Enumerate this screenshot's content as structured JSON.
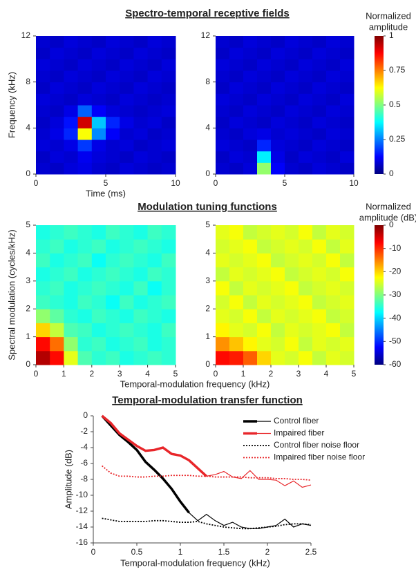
{
  "chart_data": [
    {
      "type": "heatmap",
      "title": "Spectro-temporal receptive fields",
      "xlabel": "Time (ms)",
      "ylabel": "Frequency (kHz)",
      "xlim": [
        0,
        10
      ],
      "ylim": [
        0,
        12
      ],
      "xticks": [
        0,
        5,
        10
      ],
      "yticks": [
        0,
        4,
        8,
        12
      ],
      "colormap": "jet",
      "clim": [
        0,
        1
      ],
      "cticks": [
        0,
        0.25,
        0.5,
        0.75,
        1
      ],
      "colorbar_label": [
        "Normalized",
        "amplitude"
      ],
      "panels": [
        {
          "z": [
            [
              0.08,
              0.07,
              0.09,
              0.1,
              0.08,
              0.07,
              0.09,
              0.08,
              0.07,
              0.08
            ],
            [
              0.07,
              0.09,
              0.08,
              0.11,
              0.09,
              0.08,
              0.07,
              0.09,
              0.08,
              0.07
            ],
            [
              0.09,
              0.08,
              0.1,
              0.18,
              0.1,
              0.08,
              0.09,
              0.07,
              0.08,
              0.09
            ],
            [
              0.08,
              0.1,
              0.16,
              0.62,
              0.26,
              0.12,
              0.08,
              0.09,
              0.07,
              0.08
            ],
            [
              0.07,
              0.09,
              0.14,
              0.92,
              0.32,
              0.16,
              0.1,
              0.08,
              0.09,
              0.07
            ],
            [
              0.08,
              0.07,
              0.1,
              0.22,
              0.12,
              0.09,
              0.08,
              0.07,
              0.08,
              0.09
            ],
            [
              0.09,
              0.08,
              0.07,
              0.09,
              0.08,
              0.07,
              0.09,
              0.08,
              0.07,
              0.08
            ],
            [
              0.07,
              0.09,
              0.08,
              0.07,
              0.09,
              0.08,
              0.07,
              0.09,
              0.08,
              0.07
            ],
            [
              0.08,
              0.07,
              0.09,
              0.08,
              0.07,
              0.09,
              0.08,
              0.07,
              0.09,
              0.08
            ],
            [
              0.09,
              0.08,
              0.07,
              0.09,
              0.08,
              0.07,
              0.09,
              0.08,
              0.07,
              0.09
            ],
            [
              0.07,
              0.09,
              0.08,
              0.07,
              0.09,
              0.08,
              0.07,
              0.09,
              0.08,
              0.07
            ],
            [
              0.08,
              0.07,
              0.09,
              0.08,
              0.07,
              0.09,
              0.08,
              0.07,
              0.09,
              0.08
            ]
          ]
        },
        {
          "z": [
            [
              0.08,
              0.07,
              0.09,
              0.52,
              0.12,
              0.08,
              0.07,
              0.09,
              0.08,
              0.07
            ],
            [
              0.07,
              0.09,
              0.08,
              0.36,
              0.1,
              0.07,
              0.09,
              0.08,
              0.07,
              0.09
            ],
            [
              0.09,
              0.08,
              0.07,
              0.16,
              0.09,
              0.08,
              0.07,
              0.09,
              0.08,
              0.07
            ],
            [
              0.08,
              0.07,
              0.09,
              0.1,
              0.08,
              0.09,
              0.08,
              0.07,
              0.09,
              0.08
            ],
            [
              0.07,
              0.09,
              0.08,
              0.07,
              0.09,
              0.08,
              0.07,
              0.09,
              0.08,
              0.07
            ],
            [
              0.08,
              0.07,
              0.09,
              0.08,
              0.07,
              0.09,
              0.08,
              0.07,
              0.09,
              0.08
            ],
            [
              0.09,
              0.08,
              0.07,
              0.09,
              0.08,
              0.07,
              0.09,
              0.08,
              0.07,
              0.09
            ],
            [
              0.07,
              0.09,
              0.08,
              0.07,
              0.09,
              0.08,
              0.07,
              0.09,
              0.08,
              0.07
            ],
            [
              0.08,
              0.07,
              0.09,
              0.08,
              0.07,
              0.09,
              0.08,
              0.07,
              0.09,
              0.08
            ],
            [
              0.09,
              0.08,
              0.07,
              0.09,
              0.08,
              0.07,
              0.09,
              0.08,
              0.07,
              0.09
            ],
            [
              0.07,
              0.09,
              0.08,
              0.07,
              0.09,
              0.08,
              0.07,
              0.09,
              0.08,
              0.07
            ],
            [
              0.08,
              0.07,
              0.09,
              0.08,
              0.07,
              0.09,
              0.08,
              0.07,
              0.09,
              0.08
            ]
          ]
        }
      ]
    },
    {
      "type": "heatmap",
      "title": "Modulation tuning functions",
      "xlabel": "Temporal-modulation frequency (kHz)",
      "ylabel": "Spectral modulation (cycles/kHz)",
      "xlim": [
        0,
        5
      ],
      "ylim": [
        0,
        5
      ],
      "xticks": [
        0,
        1,
        2,
        3,
        4,
        5
      ],
      "yticks": [
        0,
        1,
        2,
        3,
        4,
        5
      ],
      "colormap": "jet",
      "clim": [
        -60,
        0
      ],
      "cticks": [
        0,
        -10,
        -20,
        -30,
        -40,
        -50,
        -60
      ],
      "colorbar_label": [
        "Normalized",
        "amplitude (dB)"
      ],
      "panels": [
        {
          "z": [
            [
              -3,
              -8,
              -24,
              -33,
              -35,
              -34,
              -36,
              -35,
              -34,
              -35
            ],
            [
              -8,
              -14,
              -29,
              -35,
              -34,
              -36,
              -35,
              -34,
              -36,
              -35
            ],
            [
              -20,
              -26,
              -33,
              -34,
              -36,
              -35,
              -34,
              -35,
              -36,
              -34
            ],
            [
              -29,
              -32,
              -35,
              -36,
              -34,
              -35,
              -36,
              -34,
              -35,
              -36
            ],
            [
              -34,
              -35,
              -36,
              -34,
              -35,
              -37,
              -34,
              -36,
              -35,
              -34
            ],
            [
              -35,
              -34,
              -36,
              -35,
              -34,
              -35,
              -36,
              -34,
              -37,
              -35
            ],
            [
              -36,
              -35,
              -34,
              -36,
              -35,
              -34,
              -35,
              -36,
              -34,
              -35
            ],
            [
              -34,
              -36,
              -35,
              -34,
              -37,
              -35,
              -34,
              -35,
              -36,
              -34
            ],
            [
              -35,
              -34,
              -36,
              -35,
              -34,
              -36,
              -35,
              -34,
              -35,
              -36
            ],
            [
              -36,
              -35,
              -34,
              -35,
              -36,
              -34,
              -35,
              -36,
              -34,
              -35
            ]
          ]
        },
        {
          "z": [
            [
              -8,
              -9,
              -13,
              -20,
              -24,
              -25,
              -23,
              -26,
              -24,
              -25
            ],
            [
              -16,
              -19,
              -22,
              -24,
              -25,
              -23,
              -26,
              -24,
              -25,
              -24
            ],
            [
              -22,
              -24,
              -25,
              -23,
              -26,
              -24,
              -25,
              -24,
              -23,
              -26
            ],
            [
              -24,
              -25,
              -23,
              -26,
              -24,
              -25,
              -24,
              -23,
              -26,
              -25
            ],
            [
              -25,
              -23,
              -26,
              -24,
              -25,
              -24,
              -23,
              -26,
              -25,
              -24
            ],
            [
              -23,
              -26,
              -24,
              -25,
              -24,
              -23,
              -26,
              -25,
              -24,
              -25
            ],
            [
              -26,
              -24,
              -25,
              -24,
              -23,
              -26,
              -25,
              -24,
              -25,
              -23
            ],
            [
              -24,
              -25,
              -24,
              -23,
              -26,
              -25,
              -24,
              -25,
              -23,
              -26
            ],
            [
              -25,
              -24,
              -23,
              -26,
              -25,
              -24,
              -25,
              -23,
              -26,
              -24
            ],
            [
              -24,
              -23,
              -26,
              -25,
              -24,
              -25,
              -23,
              -26,
              -24,
              -25
            ]
          ]
        }
      ]
    },
    {
      "type": "line",
      "title": "Temporal-modulation transfer function",
      "xlabel": "Temporal-modulation frequency (kHz)",
      "ylabel": "Amplitude (dB)",
      "xlim": [
        0,
        2.5
      ],
      "ylim": [
        -16,
        0
      ],
      "xticks": [
        0,
        0.5,
        1,
        1.5,
        2,
        2.5
      ],
      "yticks": [
        0,
        -2,
        -4,
        -6,
        -8,
        -10,
        -12,
        -14,
        -16
      ],
      "x": [
        0.1,
        0.2,
        0.3,
        0.4,
        0.5,
        0.6,
        0.7,
        0.8,
        0.9,
        1.0,
        1.1,
        1.2,
        1.3,
        1.4,
        1.5,
        1.6,
        1.7,
        1.8,
        1.9,
        2.0,
        2.1,
        2.2,
        2.3,
        2.4,
        2.5
      ],
      "series": [
        {
          "name": "Control fiber",
          "color": "#000000",
          "style": "solid",
          "thick_until": 1.1,
          "values": [
            0,
            -1.2,
            -2.4,
            -3.3,
            -4.3,
            -5.8,
            -6.8,
            -7.9,
            -9.2,
            -10.8,
            -12.2,
            -13.2,
            -12.4,
            -13.2,
            -13.8,
            -13.4,
            -14,
            -14.2,
            -14.2,
            -14,
            -13.8,
            -13,
            -14,
            -13.6,
            -13.8
          ]
        },
        {
          "name": "Impaired fiber",
          "color": "#e8262a",
          "style": "solid",
          "thick_until": 1.3,
          "values": [
            0,
            -0.9,
            -2.2,
            -3,
            -3.8,
            -4.4,
            -4.3,
            -4,
            -4.8,
            -5,
            -5.6,
            -6.6,
            -7.6,
            -7.4,
            -7,
            -7.7,
            -7.9,
            -6.9,
            -8,
            -8,
            -8.1,
            -8.8,
            -8.2,
            -9,
            -8.7
          ]
        },
        {
          "name": "Control fiber noise floor",
          "color": "#000000",
          "style": "dotted",
          "values": [
            -12.9,
            -13.1,
            -13.3,
            -13.3,
            -13.3,
            -13.3,
            -13.2,
            -13.2,
            -13.3,
            -13.4,
            -13.4,
            -13.3,
            -13.6,
            -13.8,
            -14,
            -14.1,
            -14.2,
            -14.2,
            -14.1,
            -14,
            -13.9,
            -13.7,
            -13.6,
            -13.6,
            -13.7
          ]
        },
        {
          "name": "Impaired fiber noise floor",
          "color": "#e8262a",
          "style": "dotted",
          "values": [
            -6.3,
            -7.2,
            -7.6,
            -7.6,
            -7.7,
            -7.7,
            -7.6,
            -7.6,
            -7.5,
            -7.5,
            -7.5,
            -7.6,
            -7.6,
            -7.7,
            -7.7,
            -7.7,
            -7.7,
            -7.8,
            -7.8,
            -7.8,
            -7.9,
            -7.9,
            -8,
            -8,
            -8.1
          ]
        }
      ]
    }
  ]
}
